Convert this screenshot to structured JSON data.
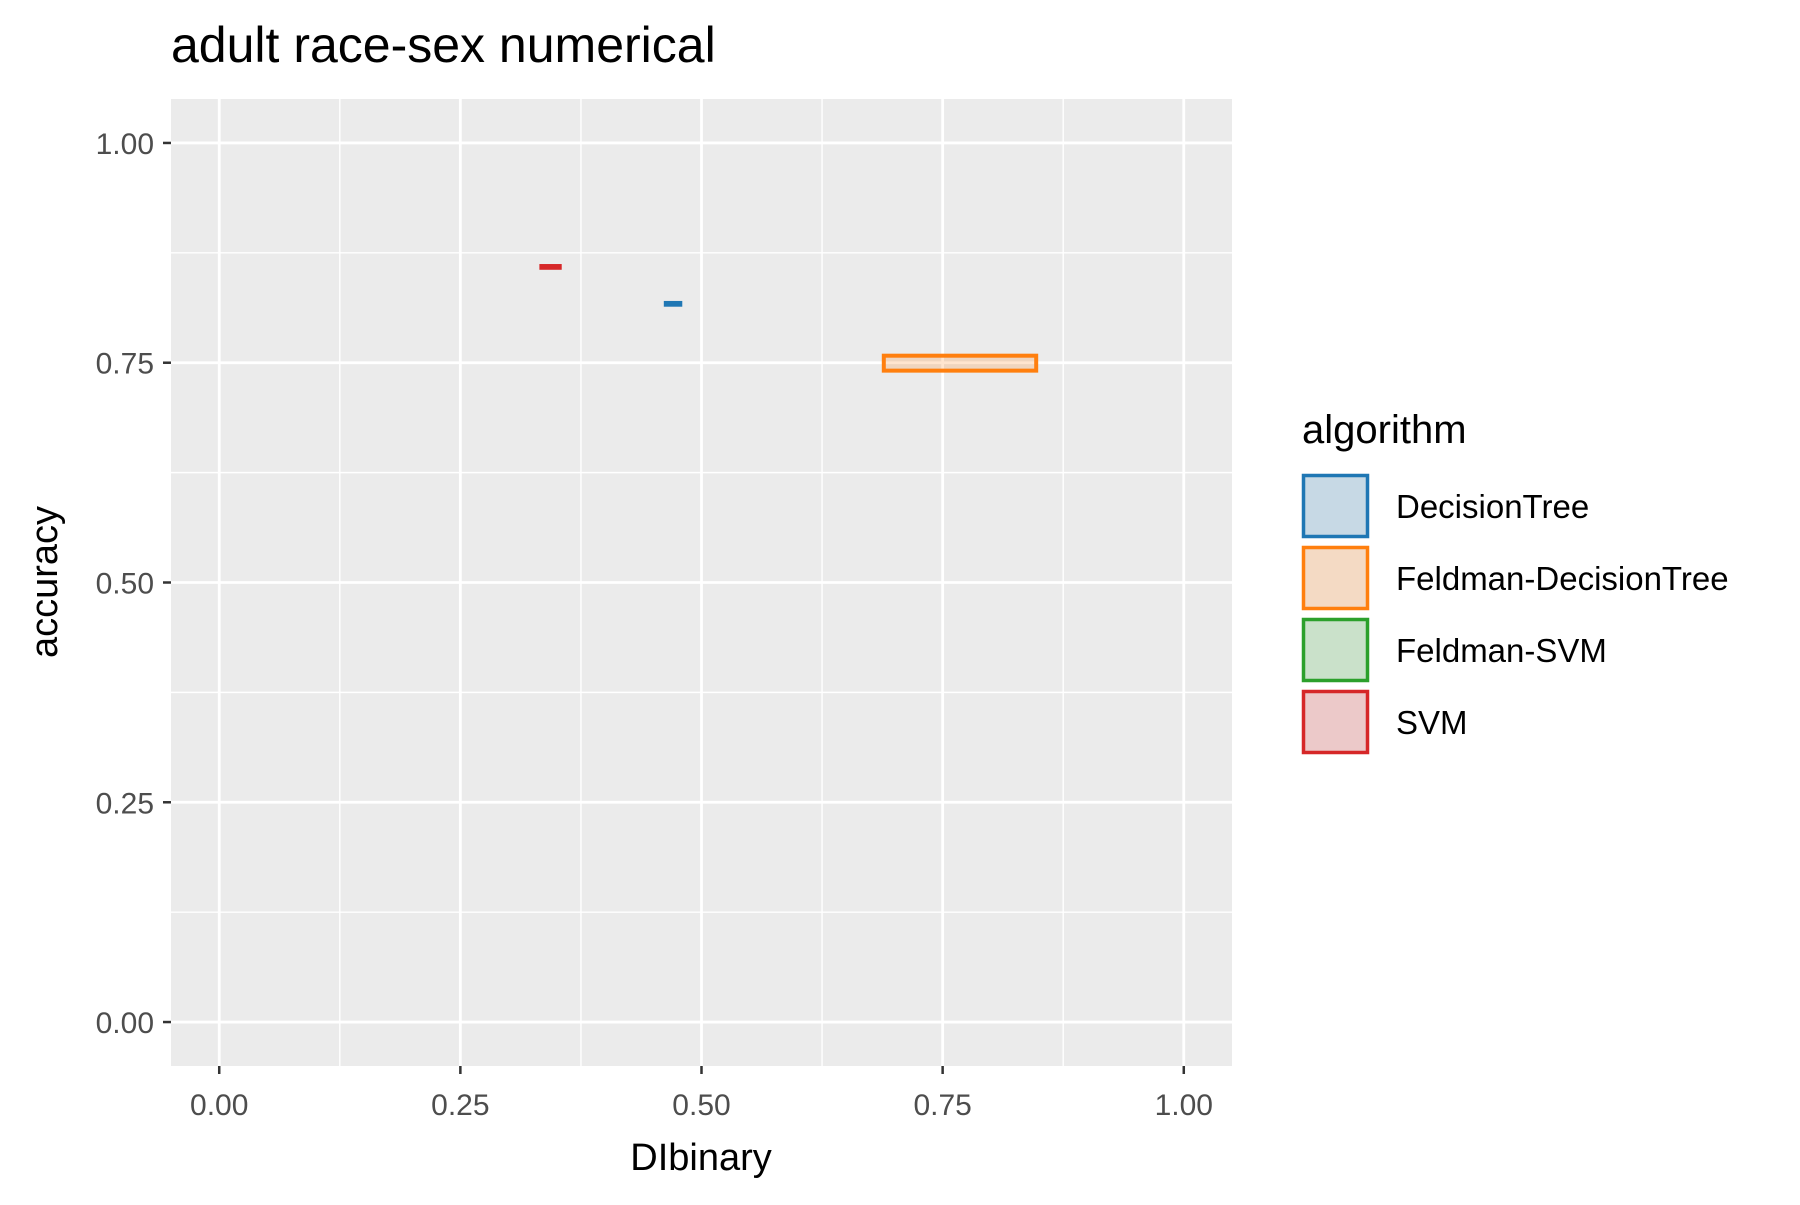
{
  "chart_data": {
    "type": "scatter",
    "title": "adult race-sex numerical",
    "xlabel": "DIbinary",
    "ylabel": "accuracy",
    "xlim": [
      -0.05,
      1.05
    ],
    "ylim": [
      -0.05,
      1.05
    ],
    "x_ticks": [
      "0.00",
      "0.25",
      "0.50",
      "0.75",
      "1.00"
    ],
    "y_ticks": [
      "0.00",
      "0.25",
      "0.50",
      "0.75",
      "1.00"
    ],
    "x_tick_values": [
      0,
      0.25,
      0.5,
      0.75,
      1.0
    ],
    "y_tick_values": [
      0,
      0.25,
      0.5,
      0.75,
      1.0
    ],
    "grid": true,
    "legend": {
      "title": "algorithm",
      "position": "right",
      "items": [
        {
          "label": "DecisionTree",
          "color": "#1f77b4"
        },
        {
          "label": "Feldman-DecisionTree",
          "color": "#ff7f0e"
        },
        {
          "label": "Feldman-SVM",
          "color": "#2ca02c"
        },
        {
          "label": "SVM",
          "color": "#d62728"
        }
      ]
    },
    "series": [
      {
        "name": "DecisionTree",
        "color": "#1f77b4",
        "x_range": [
          0.463,
          0.478
        ],
        "y_range": [
          0.816,
          0.818
        ]
      },
      {
        "name": "Feldman-DecisionTree",
        "color": "#ff7f0e",
        "x_range": [
          0.689,
          0.847
        ],
        "y_range": [
          0.741,
          0.758
        ]
      },
      {
        "name": "Feldman-SVM",
        "color": "#2ca02c",
        "x_range": null,
        "y_range": null
      },
      {
        "name": "SVM",
        "color": "#d62728",
        "x_range": [
          0.334,
          0.353
        ],
        "y_range": [
          0.858,
          0.86
        ]
      }
    ],
    "colors": {
      "panel_background": "#ebebeb",
      "grid": "#ffffff"
    }
  }
}
